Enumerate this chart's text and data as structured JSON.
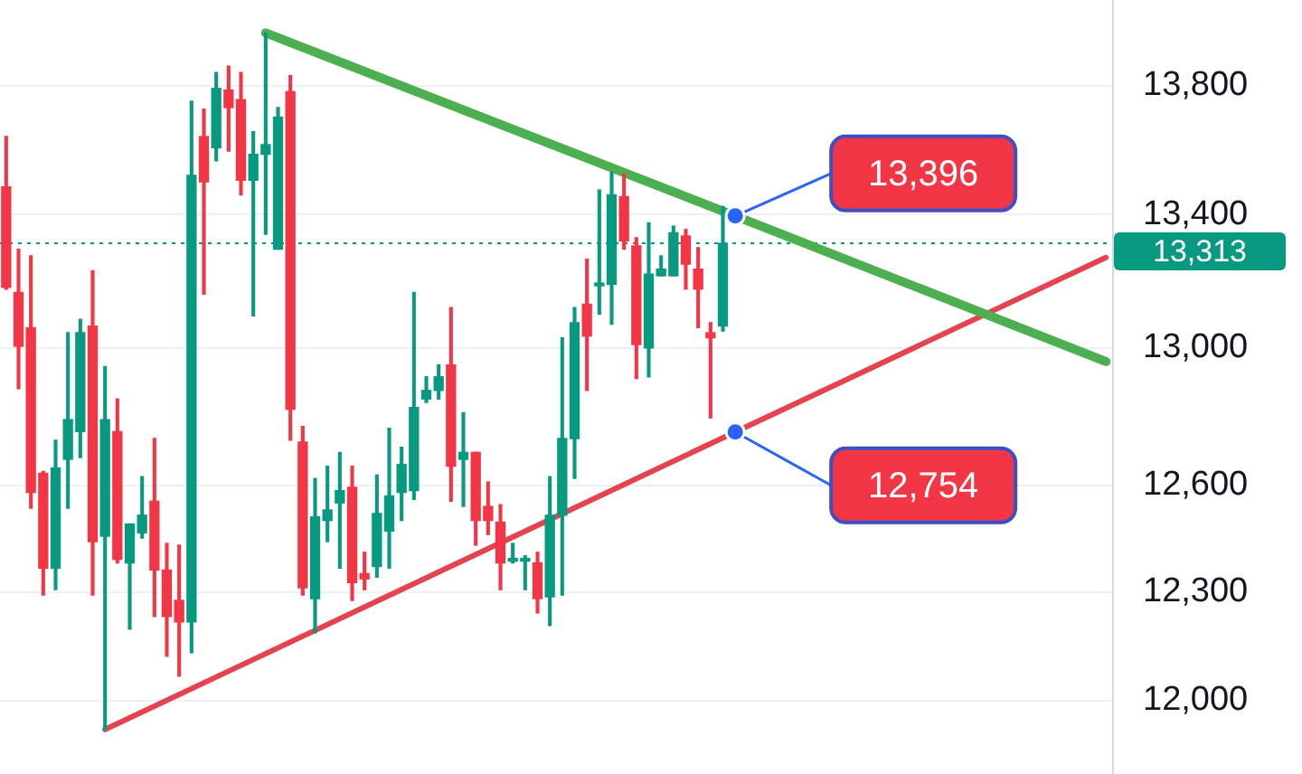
{
  "chart_data": {
    "type": "candlestick",
    "categories": [
      null,
      null,
      null,
      null,
      null,
      null,
      null,
      null,
      null,
      null,
      null,
      null,
      null,
      null,
      null,
      null,
      null,
      null,
      null,
      null,
      null,
      null,
      null,
      null,
      null,
      null,
      null,
      null,
      null,
      null,
      null,
      null,
      null,
      null,
      null,
      null,
      null,
      null,
      null,
      null,
      null,
      null,
      null,
      null,
      null,
      null,
      null,
      null,
      null,
      null,
      null,
      null,
      null,
      null,
      null,
      null,
      null,
      null,
      null,
      null,
      null,
      null,
      null,
      null,
      null,
      null,
      null,
      null,
      null,
      null,
      null,
      null,
      null,
      null,
      null,
      null,
      null,
      null,
      null,
      null,
      null,
      null,
      null,
      null,
      null,
      null,
      null,
      null,
      null,
      null
    ],
    "ohlc": [
      [
        13485,
        13640,
        13175,
        13180
      ],
      [
        13165,
        13295,
        12880,
        13005
      ],
      [
        13060,
        13275,
        12535,
        12580
      ],
      [
        12635,
        12640,
        12290,
        12365
      ],
      [
        12365,
        12730,
        12305,
        12650
      ],
      [
        12675,
        13045,
        12535,
        12790
      ],
      [
        12755,
        13085,
        12680,
        13045
      ],
      [
        13065,
        13230,
        12290,
        12440
      ],
      [
        12455,
        12945,
        11920,
        12790
      ],
      [
        12755,
        12850,
        12380,
        12390
      ],
      [
        12380,
        12490,
        12195,
        12490
      ],
      [
        12465,
        12625,
        12450,
        12515
      ],
      [
        12555,
        12735,
        12230,
        12360
      ],
      [
        12360,
        12435,
        12120,
        12230
      ],
      [
        12275,
        12430,
        12065,
        12215
      ],
      [
        12215,
        13750,
        12130,
        13520
      ],
      [
        13640,
        13725,
        13160,
        13500
      ],
      [
        13605,
        13840,
        13565,
        13790
      ],
      [
        13785,
        13860,
        13595,
        13730
      ],
      [
        13755,
        13840,
        13460,
        13505
      ],
      [
        13505,
        13655,
        13095,
        13585
      ],
      [
        13585,
        13965,
        13340,
        13615
      ],
      [
        13295,
        13730,
        13295,
        13700
      ],
      [
        13780,
        13830,
        12730,
        12820
      ],
      [
        12725,
        12770,
        12290,
        12310
      ],
      [
        12280,
        12620,
        12185,
        12510
      ],
      [
        12500,
        12655,
        12440,
        12530
      ],
      [
        12550,
        12695,
        12365,
        12585
      ],
      [
        12595,
        12655,
        12275,
        12325
      ],
      [
        12350,
        12410,
        12305,
        12335
      ],
      [
        12370,
        12630,
        12340,
        12520
      ],
      [
        12470,
        12765,
        12365,
        12570
      ],
      [
        12580,
        12710,
        12500,
        12660
      ],
      [
        12585,
        13165,
        12560,
        12825
      ],
      [
        12850,
        12915,
        12840,
        12875
      ],
      [
        12875,
        12950,
        12850,
        12915
      ],
      [
        12950,
        13120,
        12555,
        12655
      ],
      [
        12675,
        12810,
        12540,
        12695
      ],
      [
        12695,
        12695,
        12430,
        12500
      ],
      [
        12540,
        12610,
        12460,
        12500
      ],
      [
        12495,
        12545,
        12305,
        12380
      ],
      [
        12385,
        12435,
        12380,
        12390
      ],
      [
        12385,
        12400,
        12305,
        12390
      ],
      [
        12380,
        12410,
        12240,
        12280
      ],
      [
        12285,
        12625,
        12205,
        12515
      ],
      [
        12515,
        13030,
        12290,
        12735
      ],
      [
        12735,
        13120,
        12620,
        13075
      ],
      [
        13130,
        13265,
        12875,
        13035
      ],
      [
        13185,
        13475,
        13100,
        13190
      ],
      [
        13190,
        13530,
        13070,
        13460
      ],
      [
        13455,
        13525,
        13295,
        13320
      ],
      [
        13305,
        13330,
        12910,
        13010
      ],
      [
        13000,
        13375,
        12915,
        13220
      ],
      [
        13215,
        13275,
        13215,
        13235
      ],
      [
        13215,
        13365,
        13215,
        13345
      ],
      [
        13335,
        13355,
        13175,
        13250
      ],
      [
        13235,
        13300,
        13060,
        13175
      ],
      [
        13045,
        13075,
        12795,
        13030
      ],
      [
        13065,
        13425,
        13050,
        13313
      ],
      null,
      null,
      null,
      null,
      null,
      null,
      null,
      null,
      null,
      null,
      null,
      null,
      null,
      null,
      null,
      null,
      null,
      null,
      null,
      null,
      null,
      null,
      null,
      null,
      null,
      null,
      null,
      null,
      null,
      null,
      null
    ],
    "colors": [
      "#f23645",
      "#f23645",
      "#f23645",
      "#f23645",
      "#089981",
      "#089981",
      "#089981",
      "#f23645",
      "#089981",
      "#f23645",
      "#089981",
      "#089981",
      "#f23645",
      "#f23645",
      "#f23645",
      "#089981",
      "#f23645",
      "#089981",
      "#f23645",
      "#f23645",
      "#089981",
      "#089981",
      "#089981",
      "#f23645",
      "#f23645",
      "#089981",
      "#089981",
      "#089981",
      "#f23645",
      "#f23645",
      "#089981",
      "#089981",
      "#089981",
      "#089981",
      "#089981",
      "#089981",
      "#f23645",
      "#089981",
      "#f23645",
      "#f23645",
      "#f23645",
      "#089981",
      "#089981",
      "#f23645",
      "#089981",
      "#089981",
      "#089981",
      "#f23645",
      "#089981",
      "#089981",
      "#f23645",
      "#f23645",
      "#089981",
      "#089981",
      "#089981",
      "#f23645",
      "#f23645",
      "#f23645",
      "#089981",
      null,
      null,
      null,
      null,
      null,
      null,
      null,
      null,
      null,
      null,
      null,
      null,
      null,
      null,
      null,
      null,
      null,
      null,
      null,
      null,
      null,
      null,
      null,
      null,
      null,
      null,
      null,
      null,
      null,
      null,
      null
    ],
    "series": [
      {
        "type": "line",
        "color": "#4caf50",
        "values": [
          null,
          null,
          null,
          null,
          null,
          null,
          null,
          null,
          null,
          null,
          null,
          null,
          null,
          null,
          null,
          null,
          null,
          null,
          null,
          null,
          null,
          13965,
          null,
          null,
          null,
          null,
          null,
          null,
          null,
          null,
          null,
          null,
          null,
          null,
          null,
          null,
          null,
          null,
          null,
          null,
          null,
          null,
          null,
          null,
          null,
          null,
          null,
          null,
          null,
          null,
          null,
          null,
          null,
          null,
          null,
          null,
          null,
          null,
          null,
          13396,
          null,
          null,
          null,
          null,
          null,
          null,
          null,
          null,
          null,
          null,
          null,
          null,
          null,
          null,
          null,
          null,
          null,
          null,
          null,
          null,
          null,
          null,
          null,
          null,
          null,
          null,
          null,
          null,
          null,
          12960
        ]
      },
      {
        "type": "line",
        "color": "#e5434f",
        "values": [
          null,
          null,
          null,
          null,
          null,
          null,
          null,
          null,
          11920,
          null,
          null,
          null,
          null,
          null,
          null,
          null,
          null,
          null,
          null,
          null,
          null,
          null,
          null,
          null,
          null,
          null,
          null,
          null,
          null,
          null,
          null,
          null,
          null,
          null,
          null,
          null,
          null,
          null,
          null,
          null,
          null,
          null,
          null,
          null,
          null,
          null,
          null,
          null,
          null,
          null,
          null,
          null,
          null,
          null,
          null,
          null,
          null,
          null,
          null,
          12754,
          null,
          null,
          null,
          null,
          null,
          null,
          null,
          null,
          null,
          null,
          null,
          null,
          null,
          null,
          null,
          null,
          null,
          null,
          null,
          null,
          null,
          null,
          null,
          null,
          null,
          null,
          null,
          null,
          null,
          13270
        ]
      }
    ],
    "ylim": [
      11800,
      14070
    ],
    "yticks": [
      {
        "value": 12000,
        "label": "12,000"
      },
      {
        "value": 12300,
        "label": "12,300"
      },
      {
        "value": 12600,
        "label": "12,600"
      },
      {
        "value": 13000,
        "label": "13,000"
      },
      {
        "value": 13400,
        "label": "13,400"
      },
      {
        "value": 13800,
        "label": "13,800"
      }
    ],
    "log": true,
    "grid": "y",
    "tick_labels": "y",
    "ref_lines": [
      {
        "axis": "y",
        "value": 13313,
        "label": "13,313",
        "color": "#089981",
        "line_style": "dotted"
      }
    ],
    "annotations": [
      "13,396",
      "12,754"
    ]
  }
}
